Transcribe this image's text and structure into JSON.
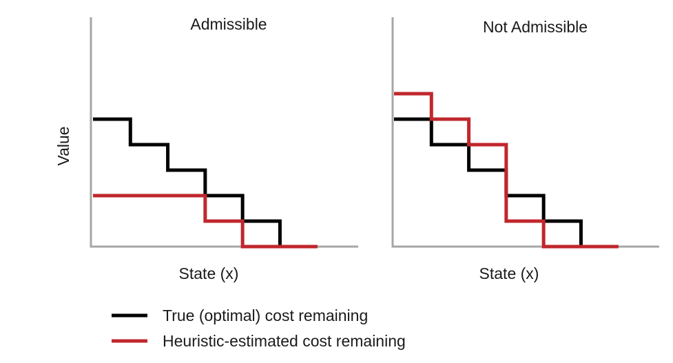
{
  "chart_data": [
    {
      "type": "line",
      "title": "Admissible",
      "xlabel": "State (x)",
      "ylabel": "Value",
      "x": [
        0,
        1,
        2,
        3,
        4,
        5,
        6
      ],
      "xlim": [
        0,
        7
      ],
      "ylim": [
        0,
        9
      ],
      "series": [
        {
          "name": "True (optimal) cost remaining",
          "color": "#000000",
          "values": [
            5,
            4,
            3,
            2,
            1,
            0,
            0
          ],
          "tail_dotted": true
        },
        {
          "name": "Heuristic-estimated cost remaining",
          "color": "#c0272d",
          "values": [
            2,
            2,
            2,
            1,
            0,
            0,
            0
          ],
          "tail_dotted": false
        }
      ]
    },
    {
      "type": "line",
      "title": "Not Admissible",
      "xlabel": "State (x)",
      "ylabel": "",
      "x": [
        0,
        1,
        2,
        3,
        4,
        5,
        6
      ],
      "xlim": [
        0,
        7
      ],
      "ylim": [
        0,
        9
      ],
      "series": [
        {
          "name": "True (optimal) cost remaining",
          "color": "#000000",
          "values": [
            5,
            4,
            3,
            2,
            1,
            0,
            0
          ],
          "tail_dotted": true
        },
        {
          "name": "Heuristic-estimated cost remaining",
          "color": "#c0272d",
          "values": [
            6,
            5,
            4,
            1,
            0,
            0,
            0
          ],
          "tail_dotted": false
        }
      ]
    }
  ],
  "legend": [
    {
      "label": "True (optimal) cost remaining",
      "color": "#000000"
    },
    {
      "label": "Heuristic-estimated cost remaining",
      "color": "#c0272d"
    }
  ],
  "colors": {
    "axis": "#a6a6a6",
    "true_cost": "#000000",
    "heuristic": "#c0272d"
  }
}
